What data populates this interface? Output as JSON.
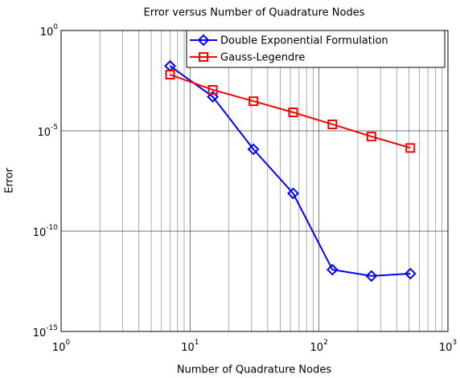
{
  "chart_data": {
    "type": "line",
    "title": "Error versus Number of Quadrature Nodes",
    "x_label": "Number of Quadrature Nodes",
    "y_label": "Error",
    "x": [
      7,
      15,
      31,
      63,
      127,
      255,
      511
    ],
    "series": [
      {
        "name": "Double Exponential Formulation",
        "color": "#0000ff",
        "marker": "diamond",
        "values": [
          0.017,
          0.0005,
          1.2e-06,
          7.6e-09,
          1.2e-12,
          5.8e-13,
          7.6e-13
        ]
      },
      {
        "name": "Gauss-Legendre",
        "color": "#ff0000",
        "marker": "square",
        "values": [
          0.0063,
          0.0011,
          0.0003,
          8.3e-05,
          2.1e-05,
          5.2e-06,
          1.4e-06
        ]
      }
    ],
    "xlim": [
      1,
      1000
    ],
    "ylim": [
      1e-15,
      1
    ],
    "xscale": "log",
    "yscale": "log",
    "xticks": [
      {
        "value": 1,
        "label": "10^0"
      },
      {
        "value": 10,
        "label": "10^1"
      },
      {
        "value": 100,
        "label": "10^2"
      },
      {
        "value": 1000,
        "label": "10^3"
      }
    ],
    "yticks": [
      {
        "value": 1e-15,
        "label": "10^-15"
      },
      {
        "value": 1e-10,
        "label": "10^-10"
      },
      {
        "value": 1e-05,
        "label": "10^-5"
      },
      {
        "value": 1,
        "label": "10^0"
      }
    ],
    "grid": true,
    "minor_grid_x": true,
    "legend": "upper right"
  }
}
